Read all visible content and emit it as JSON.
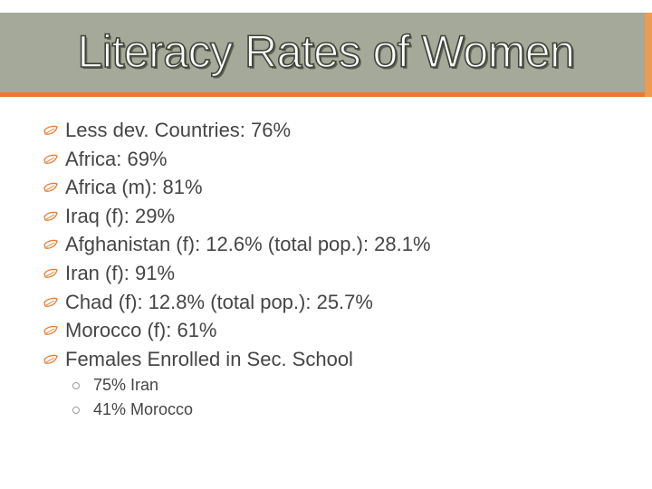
{
  "slide": {
    "title": "Literacy Rates of Women",
    "bullets": [
      "Less dev. Countries: 76%",
      "Africa: 69%",
      "Africa (m): 81%",
      "Iraq (f): 29%",
      "Afghanistan (f): 12.6% (total pop.): 28.1%",
      "Iran (f): 91%",
      "Chad (f): 12.8% (total pop.): 25.7%",
      "Morocco (f): 61%",
      "Females Enrolled in Sec. School"
    ],
    "sub_bullets": [
      "75% Iran",
      "41% Morocco"
    ]
  },
  "colors": {
    "title_bar": "#a4a999",
    "accent": "#e87b2e",
    "text": "#454545"
  },
  "icons": {
    "bullet": "leaf-bullet-icon",
    "sub_bullet": "circle-bullet-icon"
  }
}
